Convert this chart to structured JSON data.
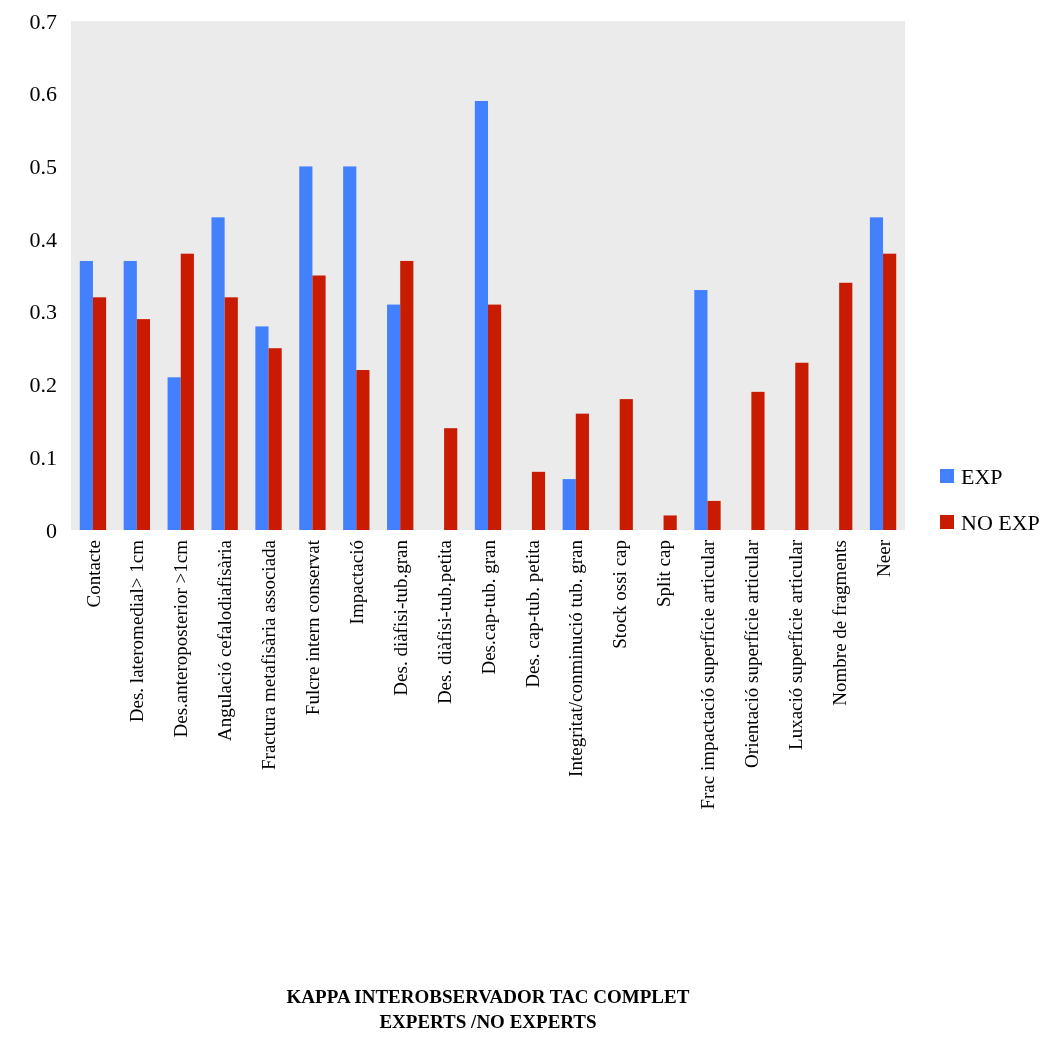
{
  "chart_data": {
    "type": "bar",
    "title": "KAPPA INTEROBSERVADOR TAC COMPLET",
    "subtitle": "EXPERTS /NO EXPERTS",
    "categories": [
      "Contacte",
      "Des. lateromedial> 1cm",
      "Des.anteroposterior >1cm",
      "Angulació cefalodiafisària",
      "Fractura metafisària associada",
      "Fulcre intern conservat",
      "Impactació",
      "Des. diàfisi-tub.gran",
      "Des. diàfisi-tub.petita",
      "Des.cap-tub. gran",
      "Des. cap-tub. petita",
      "Integritat/conminució tub. gran",
      "Stock ossi cap",
      "Split cap",
      "Frac impactació superfície articular",
      "Orientació superfície articular",
      "Luxació superfície articular",
      "Nombre de fragments",
      "Neer"
    ],
    "series": [
      {
        "name": "EXP",
        "color": "#4380fd",
        "values": [
          0.37,
          0.37,
          0.21,
          0.43,
          0.28,
          0.5,
          0.5,
          0.31,
          null,
          0.59,
          null,
          0.07,
          null,
          null,
          0.33,
          null,
          null,
          null,
          0.43
        ]
      },
      {
        "name": "NO EXP",
        "color": "#c91b00",
        "values": [
          0.32,
          0.29,
          0.38,
          0.32,
          0.25,
          0.35,
          0.22,
          0.37,
          0.14,
          0.31,
          0.08,
          0.16,
          0.18,
          0.02,
          0.04,
          0.19,
          0.23,
          0.34,
          0.38
        ]
      }
    ],
    "ylim": [
      0,
      0.7
    ],
    "yticks": [
      0,
      0.1,
      0.2,
      0.3,
      0.4,
      0.5,
      0.6,
      0.7
    ],
    "grid": false,
    "legend": "right"
  }
}
